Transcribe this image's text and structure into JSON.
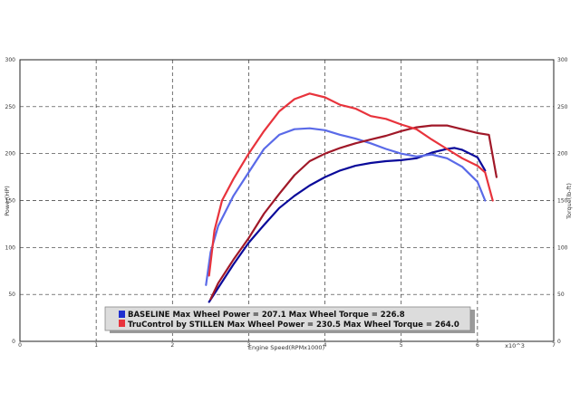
{
  "chart_data": {
    "type": "line",
    "xlabel": "Engine Speed(RPMx1000)",
    "x_multiplier": "x10^3",
    "ylabel_left": "Power(HP)",
    "ylabel_right": "Torque(lb-ft)",
    "xlim": [
      0,
      7
    ],
    "ylim": [
      0,
      300
    ],
    "x_ticks": [
      "0",
      "1",
      "2",
      "3",
      "4",
      "5",
      "6",
      "7"
    ],
    "y_ticks_left": [
      "0",
      "50",
      "100",
      "150",
      "200",
      "250",
      "300"
    ],
    "y_ticks_right": [
      "0",
      "50",
      "100",
      "150",
      "200",
      "250",
      "300"
    ],
    "grid": true,
    "legend_position": "bottom-center",
    "legend": [
      {
        "label": "BASELINE Max Wheel Power = 207.1 Max Wheel Torque = 226.8",
        "color": "#1f2fd0"
      },
      {
        "label": "TruControl by STILLEN Max Wheel Power = 230.5 Max Wheel Torque = 264.0",
        "color": "#e8333c"
      }
    ],
    "series": [
      {
        "name": "BASELINE",
        "role": "power",
        "color": "#0a0a9a",
        "x": [
          2.48,
          2.6,
          2.8,
          3.0,
          3.2,
          3.4,
          3.6,
          3.8,
          4.0,
          4.2,
          4.4,
          4.6,
          4.8,
          5.0,
          5.2,
          5.4,
          5.6,
          5.7,
          5.8,
          6.0,
          6.1
        ],
        "y": [
          42,
          57,
          82,
          105,
          124,
          142,
          155,
          166,
          175,
          182,
          187,
          190,
          192,
          193,
          195,
          201,
          205,
          206,
          204,
          196,
          182
        ]
      },
      {
        "name": "BASELINE",
        "role": "torque",
        "color": "#5a6ae8",
        "x": [
          2.44,
          2.5,
          2.6,
          2.8,
          3.0,
          3.2,
          3.4,
          3.6,
          3.8,
          4.0,
          4.2,
          4.4,
          4.6,
          4.8,
          5.0,
          5.2,
          5.4,
          5.6,
          5.8,
          6.0,
          6.1
        ],
        "y": [
          60,
          95,
          123,
          155,
          180,
          205,
          220,
          226,
          227,
          225,
          220,
          216,
          211,
          205,
          200,
          197,
          199,
          195,
          186,
          170,
          150
        ]
      },
      {
        "name": "TruControl by STILLEN",
        "role": "power",
        "color": "#a01828",
        "x": [
          2.5,
          2.6,
          2.8,
          3.0,
          3.2,
          3.4,
          3.6,
          3.8,
          4.0,
          4.2,
          4.4,
          4.6,
          4.8,
          5.0,
          5.2,
          5.4,
          5.6,
          5.8,
          6.0,
          6.15,
          6.25
        ],
        "y": [
          45,
          62,
          87,
          110,
          136,
          157,
          177,
          192,
          200,
          206,
          211,
          215,
          219,
          224,
          228,
          230,
          230,
          226,
          222,
          220,
          175
        ]
      },
      {
        "name": "TruControl by STILLEN",
        "role": "torque",
        "color": "#e8333c",
        "x": [
          2.48,
          2.55,
          2.65,
          2.8,
          3.0,
          3.2,
          3.4,
          3.6,
          3.8,
          4.0,
          4.2,
          4.4,
          4.6,
          4.8,
          5.0,
          5.2,
          5.4,
          5.6,
          5.8,
          6.0,
          6.1,
          6.2
        ],
        "y": [
          70,
          118,
          150,
          173,
          200,
          224,
          245,
          258,
          264,
          260,
          252,
          248,
          240,
          237,
          231,
          226,
          215,
          205,
          195,
          187,
          180,
          150
        ]
      }
    ]
  }
}
